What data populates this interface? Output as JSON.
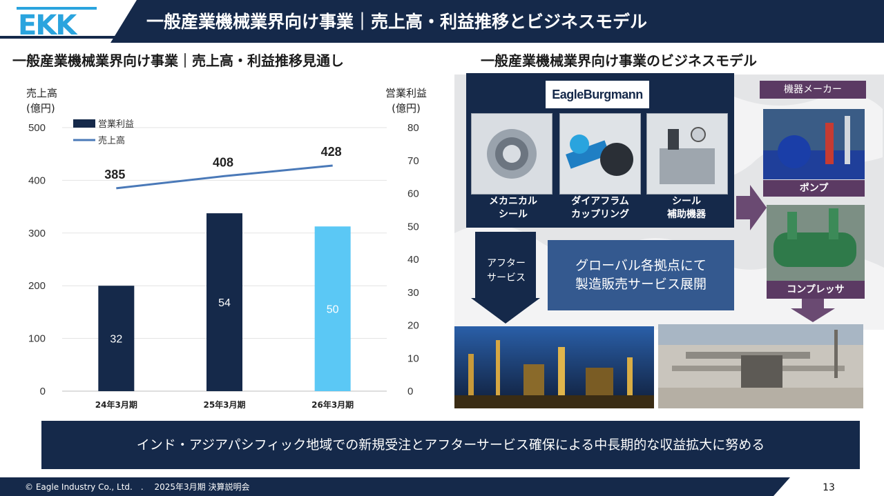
{
  "header": {
    "logo_text": "EKK",
    "title": "一般産業機械業界向け事業｜売上高・利益推移とビジネスモデル"
  },
  "left_section": {
    "title": "一般産業機械業界向け事業｜売上高・利益推移見通し"
  },
  "chart_data": {
    "type": "bar",
    "categories": [
      "24年3月期",
      "25年3月期",
      "26年3月期"
    ],
    "series": [
      {
        "name": "営業利益",
        "kind": "bar",
        "axis": "right",
        "values": [
          32,
          54,
          50
        ],
        "colors": [
          "#15294a",
          "#15294a",
          "#5bc8f5"
        ]
      },
      {
        "name": "売上高",
        "kind": "line",
        "axis": "left",
        "values": [
          385,
          408,
          428
        ],
        "color": "#4a79b8"
      }
    ],
    "left_axis": {
      "label_line1": "売上高",
      "label_line2": "(億円)",
      "ylim": [
        0,
        500
      ],
      "ticks": [
        0,
        100,
        200,
        300,
        400,
        500
      ]
    },
    "right_axis": {
      "label_line1": "営業利益",
      "label_line2": "(億円)",
      "ylim": [
        0,
        80
      ],
      "ticks": [
        0,
        10,
        20,
        30,
        40,
        50,
        60,
        70,
        80
      ]
    },
    "legend": {
      "position": "top-left"
    }
  },
  "right_section": {
    "title": "一般産業機械業界向け事業のビジネスモデル",
    "brand": "EagleBurgmann",
    "products": [
      {
        "line1": "メカニカル",
        "line2": "シール",
        "image": "mechanical-seal-image"
      },
      {
        "line1": "ダイアフラム",
        "line2": "カップリング",
        "image": "diaphragm-coupling-image"
      },
      {
        "line1": "シール",
        "line2": "補助機器",
        "image": "seal-support-system-image"
      }
    ],
    "maker_label": "機器メーカー",
    "equipment": [
      {
        "caption": "ポンプ",
        "image": "pump-photo"
      },
      {
        "caption": "コンプレッサ",
        "image": "compressor-photo"
      }
    ],
    "after_service": {
      "line1": "アフター",
      "line2": "サービス"
    },
    "global": {
      "line1": "グローバル各拠点にて",
      "line2": "製造販売サービス展開"
    },
    "plant_photos": [
      "refinery-night-photo",
      "plant-construction-photo"
    ],
    "colors": {
      "navy": "#15294a",
      "purple": "#5b3a63",
      "blue_box": "#34598f"
    }
  },
  "banner": {
    "text": "インド・アジアパシフィック地域での新規受注とアフターサービス確保による中長期的な収益拡大に努める"
  },
  "footer": {
    "copyright": "© Eagle Industry Co., Ltd.　.　 2025年3月期 決算説明会",
    "page_number": "13"
  }
}
